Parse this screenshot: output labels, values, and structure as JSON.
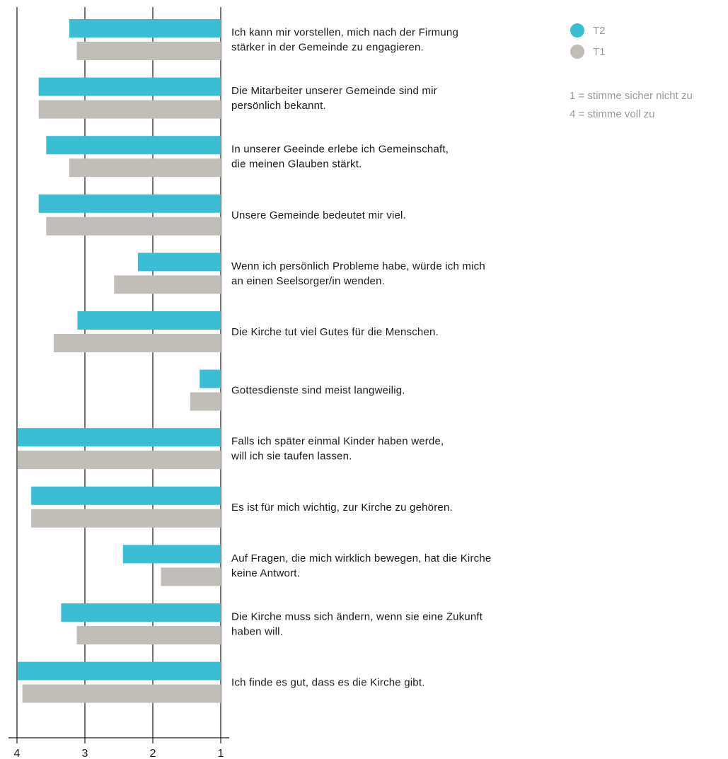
{
  "chart_data": {
    "type": "bar",
    "orientation": "horizontal",
    "x_reversed": true,
    "xlim": [
      1,
      4
    ],
    "x_ticks": [
      "4",
      "3",
      "2",
      "1"
    ],
    "categories": [
      [
        "Ich kann mir vorstellen, mich nach der Firmung",
        "stärker in der Gemeinde zu engagieren."
      ],
      [
        "Die Mitarbeiter unserer Gemeinde sind mir",
        "persönlich bekannt."
      ],
      [
        "In unserer Geeinde erlebe ich Gemeinschaft,",
        "die meinen Glauben stärkt."
      ],
      [
        "Unsere Gemeinde bedeutet mir viel."
      ],
      [
        "Wenn ich persönlich Probleme habe, würde ich mich",
        "an einen Seelsorger/in wenden."
      ],
      [
        "Die Kirche tut viel Gutes für die Menschen."
      ],
      [
        "Gottesdienste sind meist langweilig."
      ],
      [
        "Falls ich später einmal Kinder haben werde,",
        "will ich sie taufen lassen."
      ],
      [
        "Es ist für mich wichtig, zur Kirche zu gehören."
      ],
      [
        "Auf Fragen, die mich wirklich bewegen, hat die Kirche",
        "keine Antwort."
      ],
      [
        "Die Kirche muss sich ändern, wenn sie eine Zukunft",
        "haben will."
      ],
      [
        "Ich finde es gut, dass es die Kirche gibt."
      ]
    ],
    "series": [
      {
        "name": "T2",
        "color": "#3bbdd4",
        "values": [
          3.23,
          3.68,
          3.57,
          3.68,
          2.22,
          3.11,
          1.31,
          3.99,
          3.79,
          2.44,
          3.35,
          3.99
        ]
      },
      {
        "name": "T1",
        "color": "#c1bdb8",
        "values": [
          3.12,
          3.68,
          3.23,
          3.57,
          2.57,
          3.46,
          1.45,
          3.99,
          3.79,
          1.88,
          3.12,
          3.92
        ]
      }
    ],
    "legend": [
      {
        "name": "T2",
        "color": "#3bbdd4"
      },
      {
        "name": "T1",
        "color": "#c1bdb8"
      }
    ],
    "legend_position": "top-right",
    "scale_note": [
      "1 = stimme sicher nicht zu",
      "4 = stimme voll zu"
    ]
  }
}
